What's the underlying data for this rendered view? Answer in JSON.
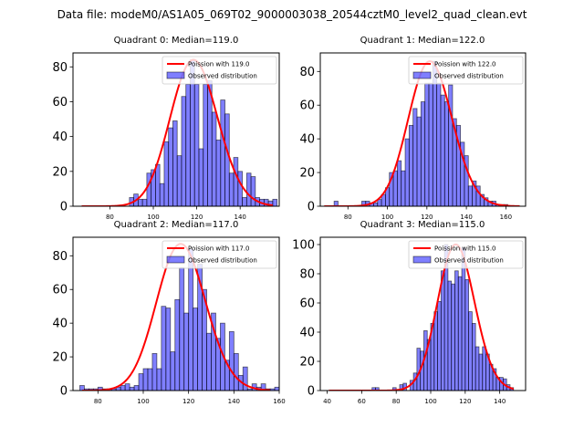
{
  "suptitle": "Data file: modeM0/AS1A05_069T02_9000003038_20544cztM0_level2_quad_clean.evt",
  "chart_data": [
    {
      "type": "bar",
      "title": "Quadrant 0: Median=119.0",
      "xlabel": "",
      "ylabel": "",
      "xlim": [
        63,
        158
      ],
      "ylim": [
        0,
        88
      ],
      "xticks": [
        80,
        100,
        120,
        140
      ],
      "yticks": [
        0,
        20,
        40,
        60,
        80
      ],
      "legend": "top-right",
      "bin_width": 2,
      "series": [
        {
          "name": "Observed distribution",
          "kind": "histogram",
          "color": "#0000ff",
          "alpha": 0.5,
          "bins_start": 90,
          "values": [
            5,
            7,
            4,
            4,
            19,
            21,
            24,
            13,
            37,
            45,
            49,
            29,
            63,
            70,
            84,
            70,
            33,
            70,
            72,
            54,
            38,
            61,
            53,
            19,
            28,
            20,
            5,
            19,
            17,
            5,
            4,
            4,
            3,
            4
          ]
        },
        {
          "name": "Poission with 119.0",
          "kind": "line",
          "color": "#ff0000",
          "mean": 119.0,
          "peak": 84,
          "x_range": [
            67,
            155
          ]
        }
      ]
    },
    {
      "type": "bar",
      "title": "Quadrant 1: Median=122.0",
      "xlabel": "",
      "ylabel": "",
      "xlim": [
        66,
        170
      ],
      "ylim": [
        0,
        91
      ],
      "xticks": [
        80,
        100,
        120,
        140,
        160
      ],
      "yticks": [
        0,
        20,
        40,
        60,
        80
      ],
      "legend": "top-right",
      "bin_width": 2,
      "series": [
        {
          "name": "Observed distribution",
          "kind": "histogram",
          "color": "#0000ff",
          "alpha": 0.5,
          "bins_start": 74,
          "values": [
            3,
            0,
            0,
            0,
            0,
            0,
            0,
            3,
            3,
            2,
            2,
            4,
            7,
            11,
            20,
            21,
            27,
            21,
            40,
            48,
            58,
            53,
            62,
            73,
            73,
            86,
            73,
            66,
            62,
            72,
            52,
            48,
            38,
            30,
            12,
            15,
            12,
            7,
            5,
            3,
            3,
            1,
            1,
            1
          ]
        },
        {
          "name": "Poission with 122.0",
          "kind": "line",
          "color": "#ff0000",
          "mean": 122.0,
          "peak": 86,
          "x_range": [
            68,
            167
          ]
        }
      ]
    },
    {
      "type": "bar",
      "title": "Quadrant 2: Median=117.0",
      "xlabel": "",
      "ylabel": "",
      "xlim": [
        69,
        160
      ],
      "ylim": [
        0,
        91
      ],
      "xticks": [
        80,
        100,
        120,
        140,
        160
      ],
      "yticks": [
        0,
        20,
        40,
        60,
        80
      ],
      "legend": "top-right",
      "bin_width": 2,
      "series": [
        {
          "name": "Observed distribution",
          "kind": "histogram",
          "color": "#0000ff",
          "alpha": 0.5,
          "bins_start": 73,
          "values": [
            3,
            1,
            1,
            1,
            2,
            1,
            1,
            1,
            2,
            3,
            4,
            2,
            3,
            10,
            13,
            13,
            22,
            13,
            50,
            49,
            23,
            54,
            73,
            46,
            84,
            49,
            75,
            60,
            34,
            46,
            31,
            40,
            18,
            35,
            22,
            9,
            14,
            1,
            4,
            2,
            4,
            1,
            1,
            2
          ]
        },
        {
          "name": "Poission with 117.0",
          "kind": "line",
          "color": "#ff0000",
          "mean": 117.0,
          "peak": 87,
          "x_range": [
            73,
            156
          ]
        }
      ]
    },
    {
      "type": "bar",
      "title": "Quadrant 3: Median=115.0",
      "xlabel": "",
      "ylabel": "",
      "xlim": [
        36,
        155
      ],
      "ylim": [
        0,
        105
      ],
      "xticks": [
        40,
        60,
        80,
        100,
        120,
        140
      ],
      "yticks": [
        0,
        20,
        40,
        60,
        80,
        100
      ],
      "legend": "top-right",
      "bin_width": 2,
      "series": [
        {
          "name": "Observed distribution",
          "kind": "histogram",
          "color": "#0000ff",
          "alpha": 0.5,
          "bins_start": 67,
          "values": [
            2,
            2,
            0,
            0,
            0,
            0,
            2,
            0,
            4,
            5,
            0,
            7,
            12,
            29,
            27,
            41,
            35,
            46,
            54,
            61,
            82,
            100,
            75,
            73,
            82,
            78,
            98,
            76,
            54,
            46,
            30,
            25,
            30,
            25,
            18,
            15,
            9,
            9,
            8,
            4,
            2
          ]
        },
        {
          "name": "Poission with 115.0",
          "kind": "line",
          "color": "#ff0000",
          "mean": 115.0,
          "peak": 100,
          "x_range": [
            41,
            148
          ]
        }
      ]
    }
  ]
}
